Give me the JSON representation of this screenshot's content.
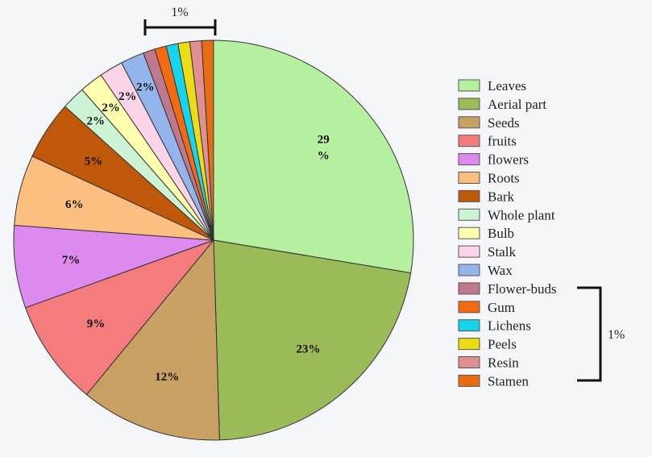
{
  "chart_data": {
    "type": "pie",
    "title": "",
    "categories": [
      "Leaves",
      "Aerial part",
      "Seeds",
      "fruits",
      "flowers",
      "Roots",
      "Bark",
      "Whole plant",
      "Bulb",
      "Stalk",
      "Wax",
      "Flower-buds",
      "Gum",
      "Lichens",
      "Peels",
      "Resin",
      "Stamen"
    ],
    "values": [
      29,
      23,
      12,
      9,
      7,
      6,
      5,
      2,
      2,
      2,
      2,
      1,
      1,
      1,
      1,
      1,
      1
    ],
    "slice_labels": [
      "29\n%",
      "23%",
      "12%",
      "9%",
      "7%",
      "6%",
      "5%",
      "2%",
      "2%",
      "2%",
      "2%",
      "",
      "",
      "",
      "",
      "",
      ""
    ],
    "colors": [
      "#b4f0a0",
      "#9bbb59",
      "#c8a064",
      "#f47c7c",
      "#dd8aee",
      "#fcbf80",
      "#c0580c",
      "#ccf4d4",
      "#ffffb0",
      "#fcd4e8",
      "#94b4ec",
      "#c0788c",
      "#f46a10",
      "#16d4ec",
      "#ecdc14",
      "#e09090",
      "#e86c14"
    ],
    "legend_position": "right",
    "start_angle_deg": 0,
    "direction": "clockwise",
    "grouped_annotation": {
      "label": "1%",
      "applies_to": [
        "Flower-buds",
        "Gum",
        "Lichens",
        "Peels",
        "Resin",
        "Stamen"
      ]
    }
  }
}
